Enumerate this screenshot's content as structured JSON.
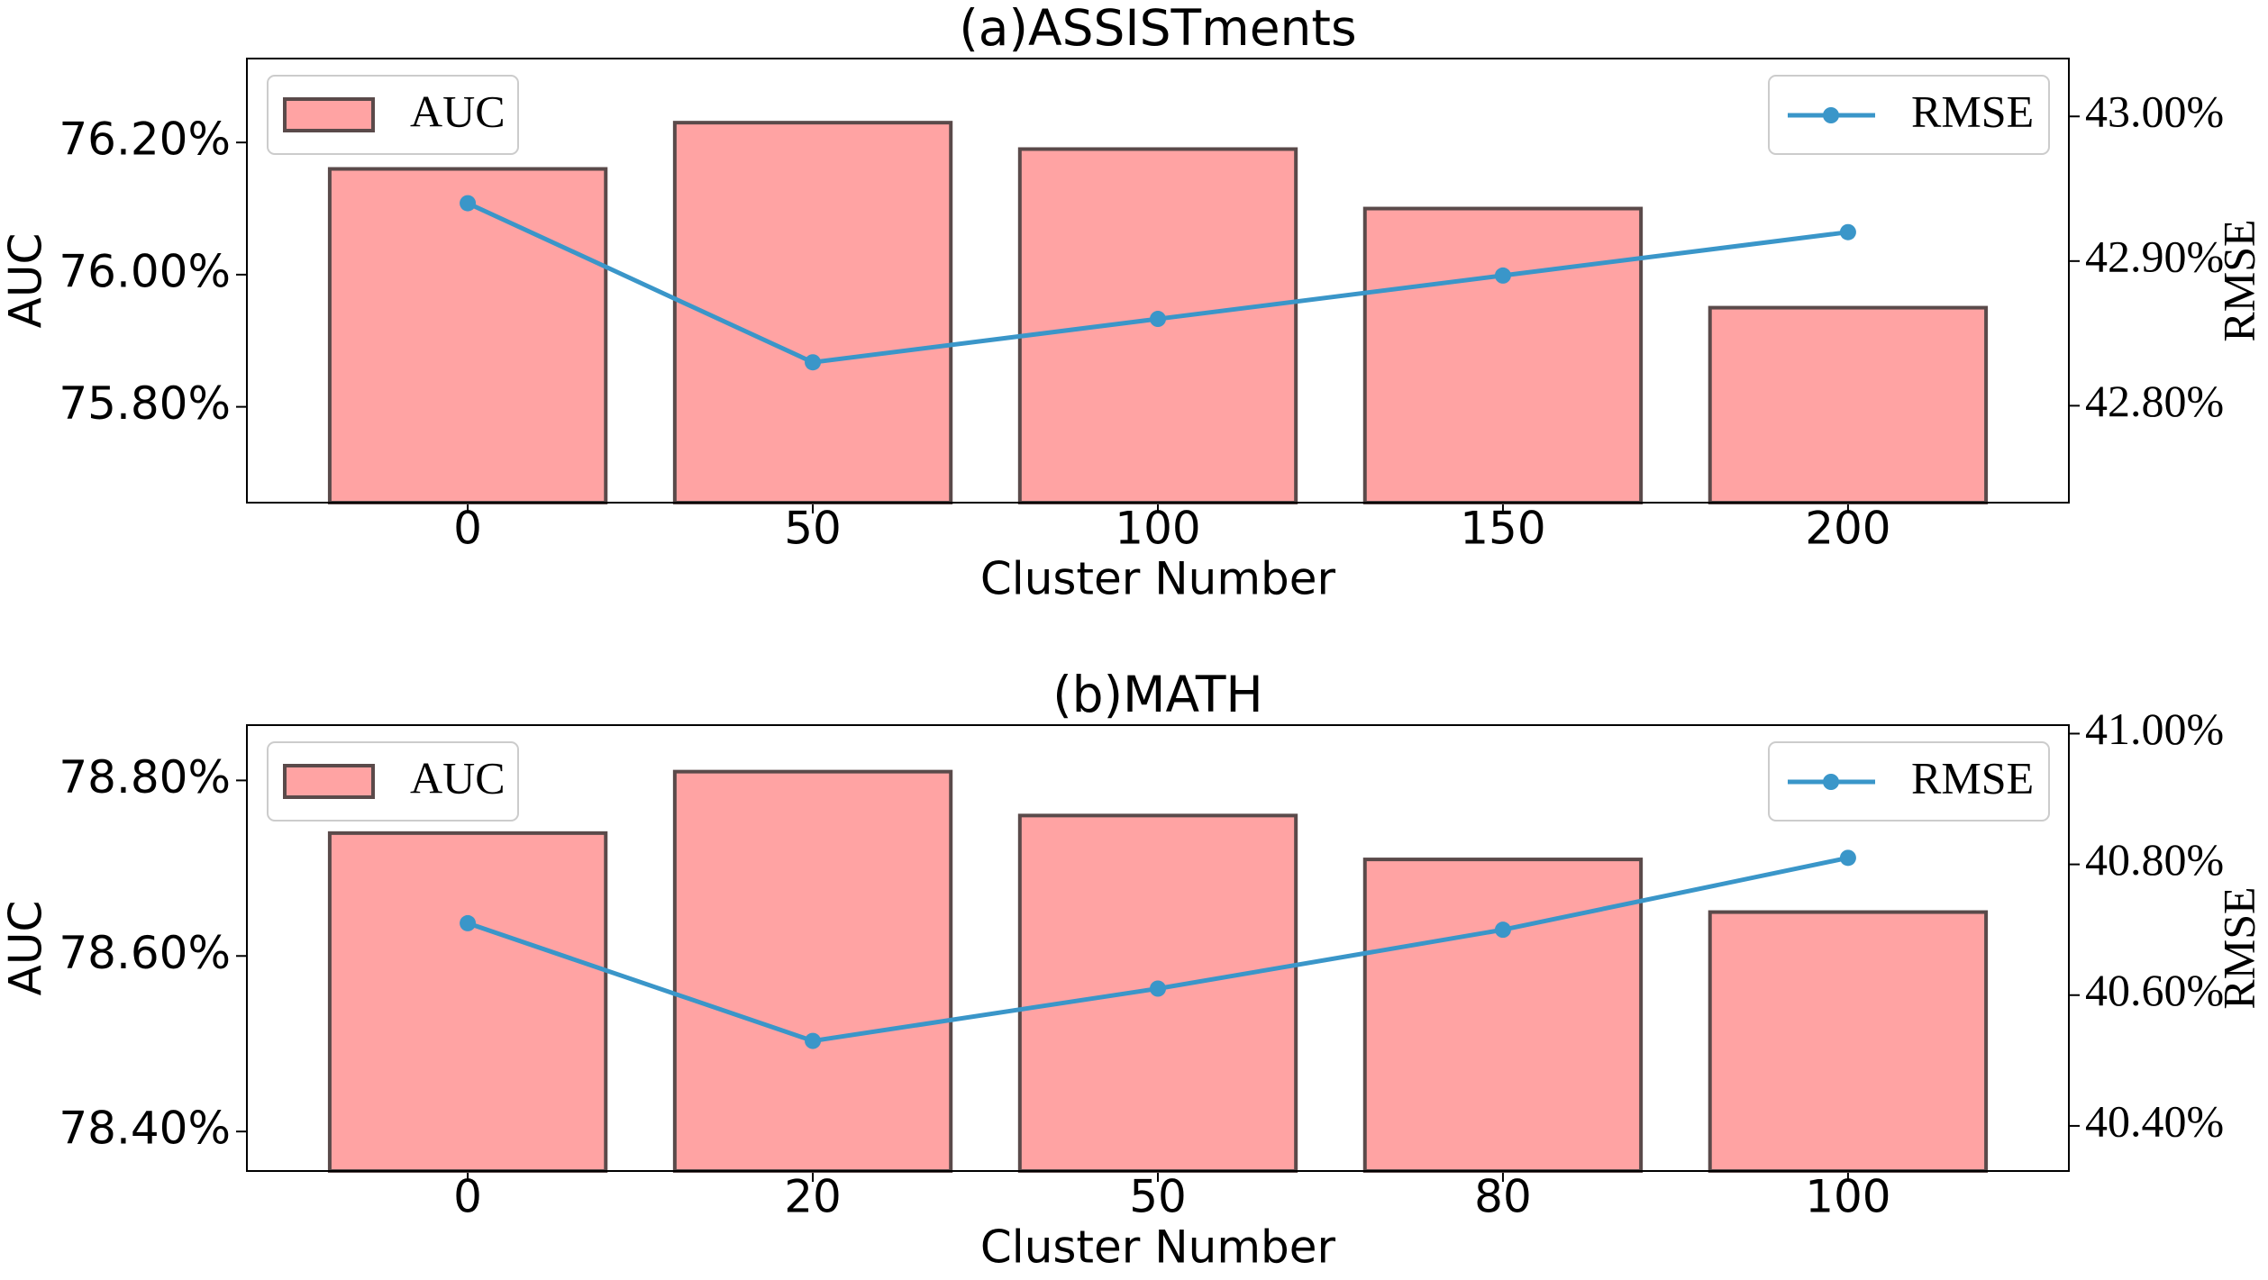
{
  "chart_data": [
    {
      "type": "bar",
      "title": "(a)ASSISTments",
      "xlabel": "Cluster Number",
      "ylabel": "AUC",
      "y2label": "RMSE",
      "categories": [
        "0",
        "50",
        "100",
        "150",
        "200"
      ],
      "series": [
        {
          "name": "AUC",
          "type": "bar",
          "color": "#ffa3a3",
          "legend": "upper left",
          "values": [
            76.16,
            76.23,
            76.19,
            76.1,
            75.95
          ]
        },
        {
          "name": "RMSE",
          "type": "line",
          "color": "#3a96c9",
          "axis": "y2",
          "legend": "upper right",
          "values": [
            42.94,
            42.83,
            42.86,
            42.89,
            42.92
          ]
        }
      ],
      "ylim": [
        75.655,
        76.327
      ],
      "yticks": [
        {
          "value": 75.8,
          "label": "75.80%"
        },
        {
          "value": 76.0,
          "label": "76.00%"
        },
        {
          "value": 76.2,
          "label": "76.20%"
        }
      ],
      "y2lim": [
        42.733,
        43.04
      ],
      "y2ticks": [
        {
          "value": 42.8,
          "label": "42.80%"
        },
        {
          "value": 42.9,
          "label": "42.90%"
        },
        {
          "value": 43.0,
          "label": "43.00%"
        }
      ]
    },
    {
      "type": "bar",
      "title": "(b)MATH",
      "xlabel": "Cluster Number",
      "ylabel": "AUC",
      "y2label": "RMSE",
      "categories": [
        "0",
        "20",
        "50",
        "80",
        "100"
      ],
      "series": [
        {
          "name": "AUC",
          "type": "bar",
          "color": "#ffa3a3",
          "legend": "upper left",
          "values": [
            78.74,
            78.81,
            78.76,
            78.71,
            78.65
          ]
        },
        {
          "name": "RMSE",
          "type": "line",
          "color": "#3a96c9",
          "axis": "y2",
          "legend": "upper right",
          "values": [
            40.71,
            40.53,
            40.61,
            40.7,
            40.81
          ]
        }
      ],
      "ylim": [
        78.355,
        78.863
      ],
      "yticks": [
        {
          "value": 78.4,
          "label": "78.40%"
        },
        {
          "value": 78.6,
          "label": "78.60%"
        },
        {
          "value": 78.8,
          "label": "78.80%"
        }
      ],
      "y2lim": [
        40.331,
        41.013
      ],
      "y2ticks": [
        {
          "value": 40.4,
          "label": "40.40%"
        },
        {
          "value": 40.6,
          "label": "40.60%"
        },
        {
          "value": 40.8,
          "label": "40.80%"
        },
        {
          "value": 41.0,
          "label": "41.00%"
        }
      ]
    }
  ]
}
